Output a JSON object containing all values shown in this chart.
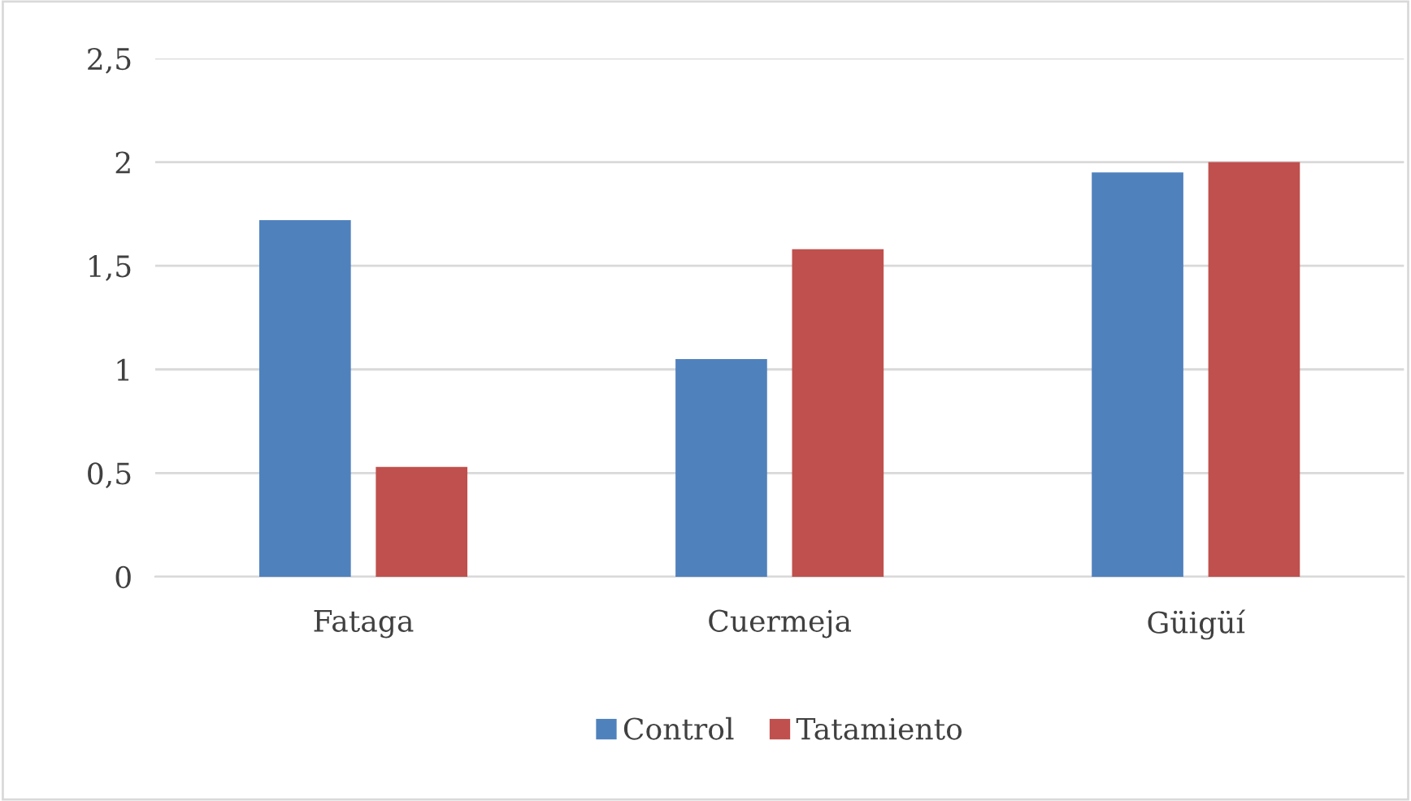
{
  "chart_data": {
    "type": "bar",
    "categories": [
      "Fataga",
      "Cuermeja",
      "Güigüí"
    ],
    "series": [
      {
        "name": "Control",
        "color": "#4f81bd",
        "values": [
          1.72,
          1.05,
          1.95
        ]
      },
      {
        "name": "Tatamiento",
        "color": "#c0504d",
        "values": [
          0.53,
          1.58,
          2.0
        ]
      }
    ],
    "ylim": [
      0,
      2.5
    ],
    "yticks": [
      {
        "value": 0,
        "label": "0"
      },
      {
        "value": 0.5,
        "label": "0,5"
      },
      {
        "value": 1,
        "label": "1"
      },
      {
        "value": 1.5,
        "label": "1,5"
      },
      {
        "value": 2,
        "label": "2"
      },
      {
        "value": 2.5,
        "label": "2,5"
      }
    ],
    "grid": "y",
    "legend": "bottom"
  }
}
